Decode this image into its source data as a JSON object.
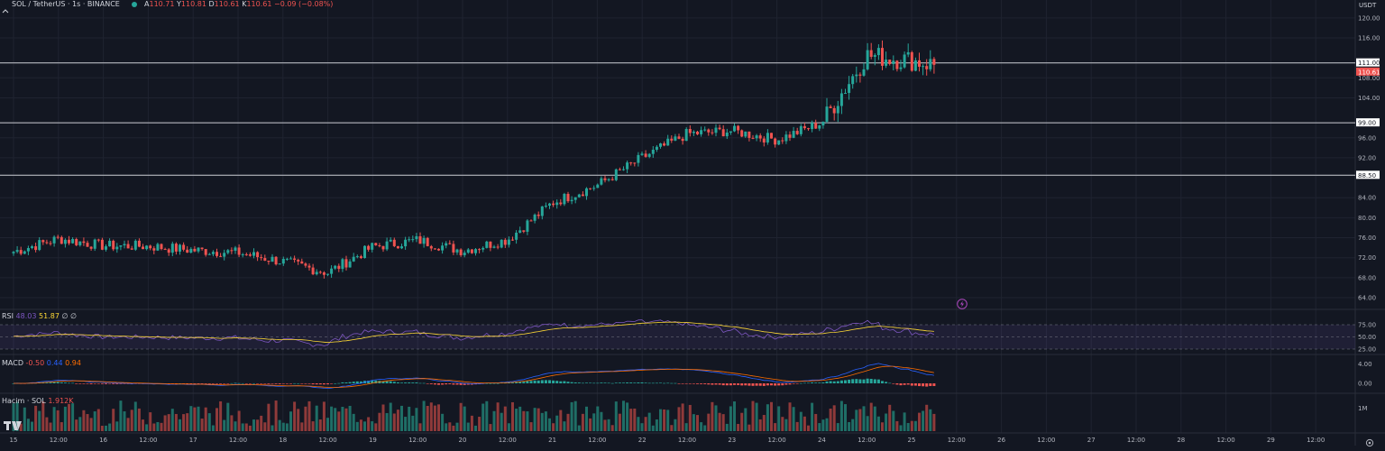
{
  "header": {
    "symbol": "SOL / TetherUS · 1s · BINANCE",
    "o_label": "A",
    "o_value": "110.71",
    "h_label": "Y",
    "h_value": "110.81",
    "l_label": "D",
    "l_value": "110.61",
    "c_label": "K",
    "c_value": "110.61",
    "change": "−0.09 (−0.08%)"
  },
  "price_axis": {
    "unit": "USDT",
    "ticks": [
      "120.00",
      "116.00",
      "111.00",
      "108.00",
      "104.00",
      "99.00",
      "96.00",
      "92.00",
      "88.50",
      "84.00",
      "80.00",
      "76.00",
      "72.00",
      "68.00",
      "64.00"
    ],
    "last_price": "110.61"
  },
  "time_axis": {
    "labels": [
      "15",
      "12:00",
      "16",
      "12:00",
      "17",
      "12:00",
      "18",
      "12:00",
      "19",
      "12:00",
      "20",
      "12:00",
      "21",
      "12:00",
      "22",
      "12:00",
      "23",
      "12:00",
      "24",
      "12:00",
      "25",
      "12:00",
      "26",
      "12:00",
      "27",
      "12:00",
      "28",
      "12:00",
      "29",
      "12:00"
    ]
  },
  "rsi": {
    "label": "RSI",
    "val1": "48.03",
    "val2": "51.87",
    "val3": "∅ ∅",
    "ticks": [
      "75.00",
      "50.00",
      "25.00"
    ]
  },
  "macd": {
    "label": "MACD",
    "hist": "-0.50",
    "macd": "0.44",
    "signal": "0.94",
    "ticks": [
      "4.00",
      "0.00"
    ]
  },
  "volume": {
    "label": "Hacim · SOL",
    "value": "1.912K",
    "tick": "1M"
  },
  "colors": {
    "background": "#131722",
    "up": "#26a69a",
    "down": "#ef5350",
    "grid": "#1f2330",
    "rsi_line": "#7e57c2",
    "rsi_ma": "#fdd835",
    "macd_line": "#2962ff",
    "signal_line": "#ff6d00"
  },
  "chart_data": {
    "type": "candlestick",
    "x_range": [
      "15",
      "30"
    ],
    "ylim": [
      62,
      122
    ],
    "horizontal_lines": [
      111.0,
      99.0,
      88.5
    ],
    "last_price": 110.61,
    "anchor_prices": [
      {
        "x": "15",
        "y": 73.2
      },
      {
        "x": "15 12:00",
        "y": 75.8
      },
      {
        "x": "16",
        "y": 74.4
      },
      {
        "x": "16 12:00",
        "y": 74.3
      },
      {
        "x": "17",
        "y": 73.5
      },
      {
        "x": "17 12:00",
        "y": 73.0
      },
      {
        "x": "18",
        "y": 71.2
      },
      {
        "x": "18 12:00",
        "y": 69.0
      },
      {
        "x": "19",
        "y": 74.2
      },
      {
        "x": "19 12:00",
        "y": 75.5
      },
      {
        "x": "20",
        "y": 73.4
      },
      {
        "x": "20 12:00",
        "y": 75.6
      },
      {
        "x": "21",
        "y": 83.0
      },
      {
        "x": "21 12:00",
        "y": 86.5
      },
      {
        "x": "22",
        "y": 92.0
      },
      {
        "x": "22 12:00",
        "y": 96.8
      },
      {
        "x": "23",
        "y": 97.4
      },
      {
        "x": "23 12:00",
        "y": 95.6
      },
      {
        "x": "24",
        "y": 99.0
      },
      {
        "x": "24 12:00",
        "y": 112.5
      },
      {
        "x": "25",
        "y": 111.5
      },
      {
        "x": "25 06:00",
        "y": 110.61
      }
    ]
  }
}
